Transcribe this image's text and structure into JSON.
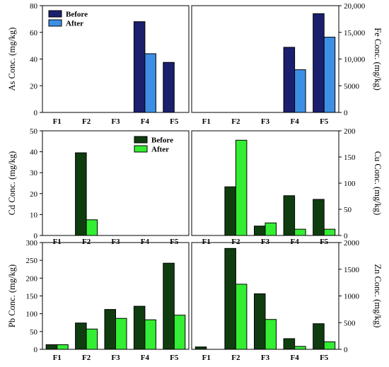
{
  "colors": {
    "before_blue": "#1a1f6e",
    "after_blue": "#3d8fe6",
    "before_green": "#0f3d0f",
    "after_green": "#33ee33"
  },
  "chart_data": [
    {
      "id": "as",
      "type": "bar",
      "categories": [
        "F1",
        "F2",
        "F3",
        "F4",
        "F5"
      ],
      "ylabel": "As Conc. (mg/kg)",
      "ylim": [
        0,
        80
      ],
      "yticks": [
        0,
        20,
        40,
        60,
        80
      ],
      "ytick_labels": [
        "0",
        "20",
        "40",
        "60",
        "80"
      ],
      "axis_side": "left",
      "legend": "top-left",
      "palette": "blue",
      "series": [
        {
          "name": "Before",
          "values": [
            0,
            0,
            0,
            68,
            37.5
          ]
        },
        {
          "name": "After",
          "values": [
            0,
            0,
            0,
            44,
            0
          ]
        }
      ]
    },
    {
      "id": "fe",
      "type": "bar",
      "categories": [
        "F1",
        "F2",
        "F3",
        "F4",
        "F5"
      ],
      "ylabel": "Fe Conc. (mg/kg)",
      "ylim": [
        0,
        20000
      ],
      "yticks": [
        0,
        5000,
        10000,
        15000,
        20000
      ],
      "ytick_labels": [
        "0",
        "5000",
        "10,000",
        "15,000",
        "20,000"
      ],
      "axis_side": "right",
      "legend": "none",
      "palette": "blue",
      "series": [
        {
          "name": "Before",
          "values": [
            0,
            0,
            0,
            12200,
            18500
          ]
        },
        {
          "name": "After",
          "values": [
            0,
            0,
            0,
            8000,
            14100
          ]
        }
      ]
    },
    {
      "id": "cd",
      "type": "bar",
      "categories": [
        "F1",
        "F2",
        "F3",
        "F4",
        "F5"
      ],
      "ylabel": "Cd Conc. (mg/kg)",
      "ylim": [
        0,
        50
      ],
      "yticks": [
        0,
        10,
        20,
        30,
        40,
        50
      ],
      "ytick_labels": [
        "0",
        "10",
        "20",
        "30",
        "40",
        "50"
      ],
      "axis_side": "left",
      "legend": "top-right",
      "palette": "green",
      "series": [
        {
          "name": "Before",
          "values": [
            0,
            39.5,
            0,
            0,
            0
          ]
        },
        {
          "name": "After",
          "values": [
            0,
            7.5,
            0,
            0,
            0
          ]
        }
      ]
    },
    {
      "id": "cu",
      "type": "bar",
      "categories": [
        "F1",
        "F2",
        "F3",
        "F4",
        "F5"
      ],
      "ylabel": "Cu Conc. (mg/kg)",
      "ylim": [
        0,
        200
      ],
      "yticks": [
        0,
        50,
        100,
        150,
        200
      ],
      "ytick_labels": [
        "0",
        "50",
        "100",
        "150",
        "200"
      ],
      "axis_side": "right",
      "legend": "none",
      "palette": "green",
      "series": [
        {
          "name": "Before",
          "values": [
            0,
            93,
            18,
            76,
            69
          ]
        },
        {
          "name": "After",
          "values": [
            0,
            182,
            24,
            12,
            12
          ]
        }
      ]
    },
    {
      "id": "pb",
      "type": "bar",
      "categories": [
        "F1",
        "F2",
        "F3",
        "F4",
        "F5"
      ],
      "ylabel": "Pb Conc. (mg/kg)",
      "ylim": [
        0,
        300
      ],
      "yticks": [
        0,
        50,
        100,
        150,
        200,
        250,
        300
      ],
      "ytick_labels": [
        "0",
        "50",
        "100",
        "150",
        "200",
        "250",
        "300"
      ],
      "axis_side": "left",
      "legend": "none",
      "palette": "green",
      "series": [
        {
          "name": "Before",
          "values": [
            13,
            74,
            112,
            121,
            242
          ]
        },
        {
          "name": "After",
          "values": [
            13,
            57,
            87,
            83,
            96
          ]
        }
      ]
    },
    {
      "id": "zn",
      "type": "bar",
      "categories": [
        "F1",
        "F2",
        "F3",
        "F4",
        "F5"
      ],
      "ylabel": "Zn Conc. (mg/kg)",
      "ylim": [
        0,
        2000
      ],
      "yticks": [
        0,
        500,
        1000,
        1500,
        2000
      ],
      "ytick_labels": [
        "0",
        "500",
        "1000",
        "1500",
        "2000"
      ],
      "axis_side": "right",
      "legend": "none",
      "palette": "green",
      "series": [
        {
          "name": "Before",
          "values": [
            45,
            1890,
            1040,
            200,
            480
          ]
        },
        {
          "name": "After",
          "values": [
            0,
            1220,
            560,
            55,
            140
          ]
        }
      ]
    }
  ]
}
